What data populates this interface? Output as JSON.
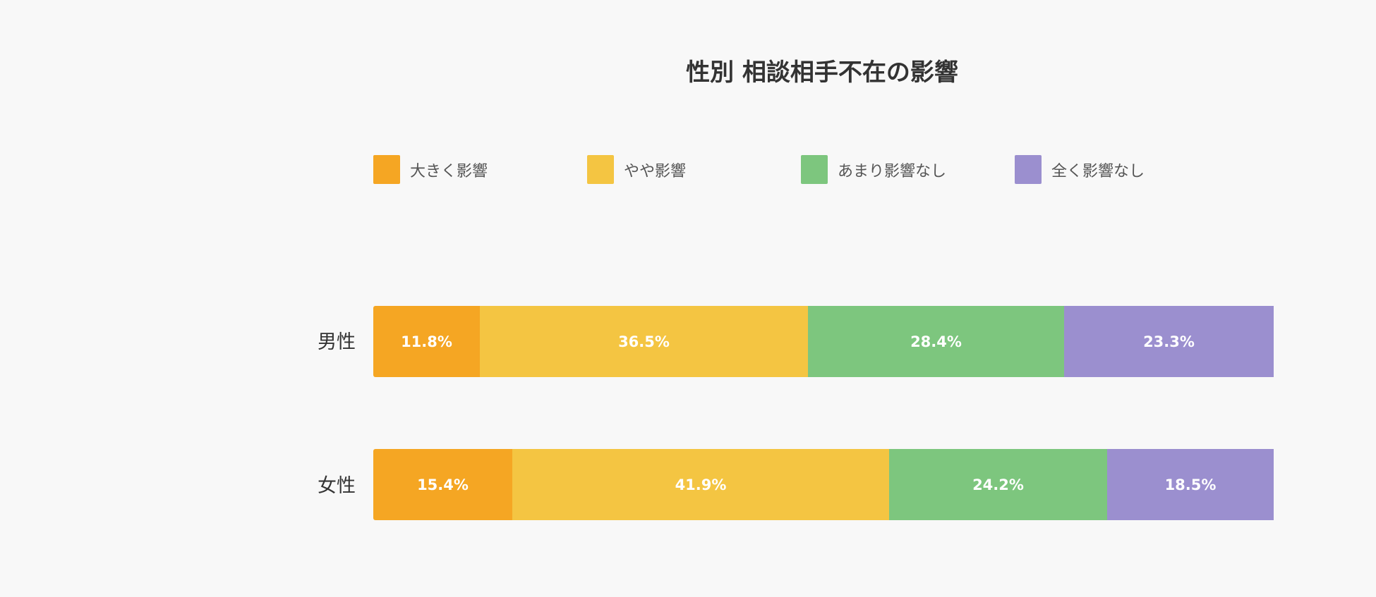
{
  "chart_data": {
    "type": "bar",
    "orientation": "horizontal",
    "stacked": true,
    "title": "性別 相談相手不在の影響",
    "categories": [
      "男性",
      "女性"
    ],
    "series": [
      {
        "name": "大きく影響",
        "color": "#f5a623",
        "values": [
          11.8,
          15.4
        ],
        "labels": [
          "11.8%",
          "15.4%"
        ]
      },
      {
        "name": "やや影響",
        "color": "#f4c542",
        "values": [
          36.5,
          41.9
        ],
        "labels": [
          "36.5%",
          "41.9%"
        ]
      },
      {
        "name": "あまり影響なし",
        "color": "#7dc67e",
        "values": [
          28.4,
          24.2
        ],
        "labels": [
          "28.4%",
          "24.2%"
        ]
      },
      {
        "name": "全く影響なし",
        "color": "#9b8fcf",
        "values": [
          23.3,
          18.5
        ],
        "labels": [
          "23.3%",
          "18.5%"
        ]
      }
    ],
    "xlim": [
      0,
      100
    ],
    "legend": "top",
    "grid": false
  }
}
